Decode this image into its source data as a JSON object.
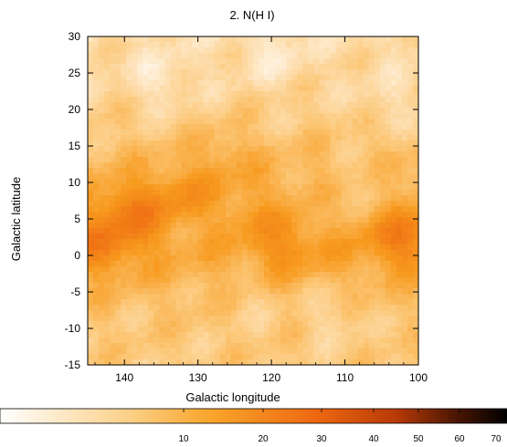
{
  "chart_data": {
    "type": "heatmap",
    "title": "2. N(H I)",
    "xlabel": "Galactic longitude",
    "ylabel": "Galactic latitude",
    "xlim": [
      145,
      100
    ],
    "ylim": [
      -15,
      30
    ],
    "x_ticks": [
      140,
      130,
      120,
      110,
      100
    ],
    "y_ticks": [
      -15,
      -10,
      -5,
      0,
      5,
      10,
      15,
      20,
      25,
      30
    ],
    "x_axis_reversed": true,
    "grid": false,
    "colormap": [
      "#ffffff",
      "#fcc879",
      "#f79a1e",
      "#ee6a12",
      "#c23e08",
      "#5a1a02",
      "#000000"
    ],
    "colorbar": {
      "scale": "log",
      "ticks": [
        10,
        20,
        30,
        40,
        50,
        60,
        70
      ]
    },
    "features": [
      {
        "l": 139,
        "b": 6,
        "intensity": 0.85
      },
      {
        "l": 143,
        "b": 1,
        "intensity": 0.8
      },
      {
        "l": 132,
        "b": 9,
        "intensity": 0.55
      },
      {
        "l": 102,
        "b": 2,
        "intensity": 0.82
      },
      {
        "l": 118,
        "b": 1,
        "intensity": 0.55
      },
      {
        "l": 126,
        "b": 14,
        "intensity": 0.45
      },
      {
        "l": 107,
        "b": 9,
        "intensity": -0.6
      },
      {
        "l": 113,
        "b": 6,
        "intensity": -0.5
      },
      {
        "l": 112,
        "b": -8,
        "intensity": -0.45
      },
      {
        "l": 135,
        "b": 24,
        "intensity": -0.5
      },
      {
        "l": 120,
        "b": 27,
        "intensity": -0.4
      },
      {
        "l": 104,
        "b": 21,
        "intensity": -0.35
      },
      {
        "l": 130,
        "b": 3,
        "intensity": -0.3
      },
      {
        "l": 123,
        "b": -6,
        "intensity": -0.3
      }
    ]
  }
}
